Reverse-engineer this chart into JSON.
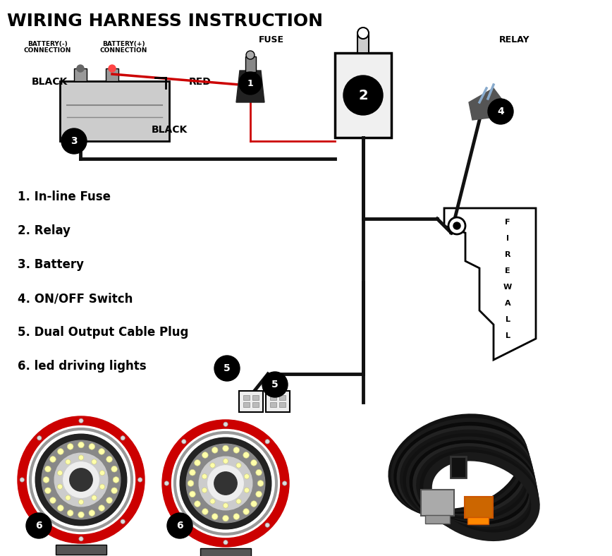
{
  "title": "WIRING HARNESS INSTRUCTION",
  "title_fontsize": 18,
  "title_fontweight": "bold",
  "background_color": "#ffffff",
  "legend_items": [
    "1. In-line Fuse",
    "2. Relay",
    "3. Battery",
    "4. ON/OFF Switch",
    "5. Dual Output Cable Plug",
    "6. led driving lights"
  ],
  "colors": {
    "black": "#000000",
    "red": "#cc0000",
    "white": "#ffffff",
    "gray": "#888888",
    "dark_gray": "#333333",
    "light_gray": "#cccccc",
    "red_ring": "#cc0000",
    "wire_black": "#111111",
    "battery_body": "#c8c8c8",
    "firewall_fill": "#ffffff"
  }
}
